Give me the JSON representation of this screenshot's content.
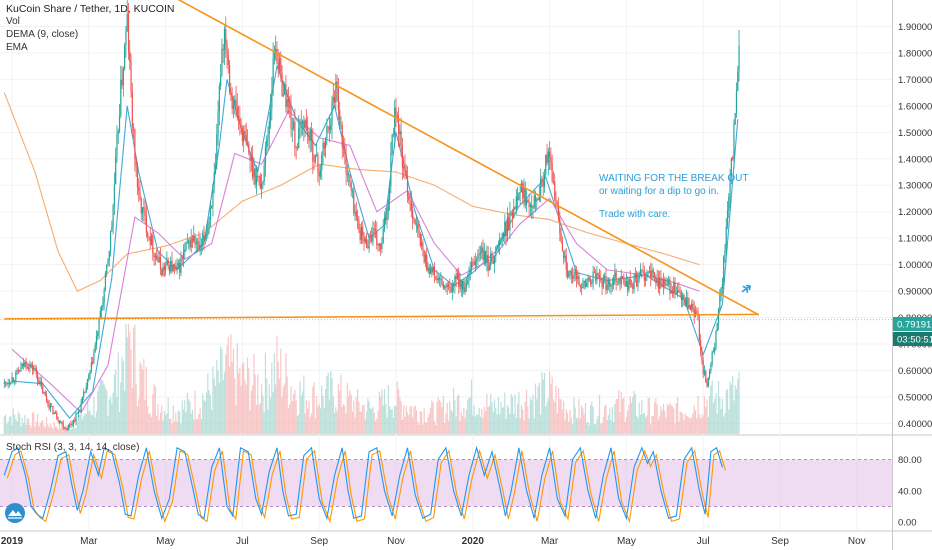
{
  "header": {
    "title": "KuCoin Share / Tether, 1D, KUCOIN",
    "vol_label": "Vol",
    "dema_label": "DEMA (9, close)",
    "ema_label": "EMA"
  },
  "rsi_title": "Stoch RSI (3, 3, 14, 14, close)",
  "annotation": {
    "line1": "WAITING FOR THE BREAK OUT",
    "line2": "or waiting for a dip to go in.",
    "line3": "Trade with care."
  },
  "price_badge": "0.79191",
  "timer_badge": "03:50:51",
  "colors": {
    "candle_up": "#26a69a",
    "candle_down": "#ef5350",
    "trendline": "#f7931a",
    "dema": "#2b9fd8",
    "ema_slow": "#f4a460",
    "ema_fast": "#d473d4",
    "rsi_k": "#2196f3",
    "rsi_d": "#ff9800",
    "rsi_band": "#e1bee7",
    "badge_price": "#26a69a",
    "badge_timer": "#1b7a6f"
  },
  "icons": {
    "logo": "tradingview-logo-icon",
    "arrow": "airplane-arrow-icon"
  },
  "chart_data": {
    "type": "candlestick",
    "title": "KuCoin Share / Tether, 1D, KUCOIN",
    "x_ticks": [
      "2019",
      "Mar",
      "May",
      "Jul",
      "Sep",
      "Nov",
      "2020",
      "Mar",
      "May",
      "Jul",
      "Sep",
      "Nov"
    ],
    "x_tick_months": [
      0,
      2,
      4,
      6,
      8,
      10,
      12,
      14,
      16,
      18,
      20,
      22
    ],
    "y_ticks": [
      "0.40000",
      "0.50000",
      "0.60000",
      "0.70000",
      "0.80000",
      "0.90000",
      "1.00000",
      "1.10000",
      "1.20000",
      "1.30000",
      "1.40000",
      "1.50000",
      "1.60000",
      "1.70000",
      "1.80000",
      "1.90000"
    ],
    "y_tick_values": [
      0.4,
      0.5,
      0.6,
      0.7,
      0.8,
      0.9,
      1.0,
      1.1,
      1.2,
      1.3,
      1.4,
      1.5,
      1.6,
      1.7,
      1.8,
      1.9
    ],
    "ylim": [
      0.36,
      2.0
    ],
    "price_path": [
      [
        -0.2,
        0.55
      ],
      [
        0.1,
        0.58
      ],
      [
        0.35,
        0.63
      ],
      [
        0.6,
        0.6
      ],
      [
        0.8,
        0.52
      ],
      [
        1.0,
        0.46
      ],
      [
        1.2,
        0.42
      ],
      [
        1.4,
        0.38
      ],
      [
        1.6,
        0.41
      ],
      [
        1.75,
        0.45
      ],
      [
        1.9,
        0.52
      ],
      [
        2.05,
        0.6
      ],
      [
        2.2,
        0.72
      ],
      [
        2.4,
        0.9
      ],
      [
        2.6,
        1.15
      ],
      [
        2.8,
        1.6
      ],
      [
        3.0,
        1.92
      ],
      [
        3.15,
        1.5
      ],
      [
        3.3,
        1.25
      ],
      [
        3.5,
        1.15
      ],
      [
        3.7,
        1.05
      ],
      [
        3.9,
        0.98
      ],
      [
        4.1,
        1.0
      ],
      [
        4.3,
        0.97
      ],
      [
        4.5,
        1.05
      ],
      [
        4.7,
        1.1
      ],
      [
        4.9,
        1.05
      ],
      [
        5.1,
        1.15
      ],
      [
        5.3,
        1.35
      ],
      [
        5.45,
        1.8
      ],
      [
        5.55,
        1.9
      ],
      [
        5.7,
        1.65
      ],
      [
        5.9,
        1.55
      ],
      [
        6.1,
        1.45
      ],
      [
        6.3,
        1.35
      ],
      [
        6.5,
        1.3
      ],
      [
        6.7,
        1.55
      ],
      [
        6.85,
        1.85
      ],
      [
        7.0,
        1.7
      ],
      [
        7.2,
        1.6
      ],
      [
        7.4,
        1.45
      ],
      [
        7.6,
        1.55
      ],
      [
        7.8,
        1.45
      ],
      [
        8.0,
        1.35
      ],
      [
        8.2,
        1.5
      ],
      [
        8.35,
        1.6
      ],
      [
        8.45,
        1.7
      ],
      [
        8.6,
        1.45
      ],
      [
        8.8,
        1.3
      ],
      [
        9.0,
        1.15
      ],
      [
        9.2,
        1.08
      ],
      [
        9.4,
        1.12
      ],
      [
        9.6,
        1.05
      ],
      [
        9.8,
        1.25
      ],
      [
        9.9,
        1.5
      ],
      [
        10.0,
        1.6
      ],
      [
        10.2,
        1.35
      ],
      [
        10.4,
        1.22
      ],
      [
        10.6,
        1.1
      ],
      [
        10.8,
        1.0
      ],
      [
        11.0,
        0.96
      ],
      [
        11.2,
        0.92
      ],
      [
        11.4,
        0.9
      ],
      [
        11.6,
        0.95
      ],
      [
        11.8,
        0.9
      ],
      [
        12.0,
        1.0
      ],
      [
        12.2,
        1.05
      ],
      [
        12.4,
        1.0
      ],
      [
        12.6,
        1.05
      ],
      [
        12.8,
        1.12
      ],
      [
        13.0,
        1.18
      ],
      [
        13.2,
        1.3
      ],
      [
        13.4,
        1.25
      ],
      [
        13.6,
        1.25
      ],
      [
        13.8,
        1.3
      ],
      [
        13.95,
        1.42
      ],
      [
        14.1,
        1.3
      ],
      [
        14.3,
        1.1
      ],
      [
        14.5,
        0.95
      ],
      [
        14.7,
        0.95
      ],
      [
        14.9,
        0.92
      ],
      [
        15.1,
        0.95
      ],
      [
        15.3,
        0.95
      ],
      [
        15.5,
        0.92
      ],
      [
        15.7,
        0.96
      ],
      [
        15.9,
        0.94
      ],
      [
        16.1,
        0.92
      ],
      [
        16.3,
        0.95
      ],
      [
        16.5,
        0.97
      ],
      [
        16.7,
        0.95
      ],
      [
        16.9,
        0.93
      ],
      [
        17.1,
        0.92
      ],
      [
        17.3,
        0.9
      ],
      [
        17.5,
        0.86
      ],
      [
        17.7,
        0.83
      ],
      [
        17.85,
        0.8
      ],
      [
        18.0,
        0.6
      ],
      [
        18.1,
        0.55
      ],
      [
        18.3,
        0.7
      ],
      [
        18.5,
        0.95
      ],
      [
        18.7,
        1.3
      ],
      [
        18.85,
        1.6
      ],
      [
        18.95,
        1.82
      ]
    ],
    "series": [
      {
        "name": "DEMA (9, close)",
        "color": "#2b9fd8",
        "points": [
          [
            0.0,
            0.56
          ],
          [
            0.8,
            0.55
          ],
          [
            1.5,
            0.42
          ],
          [
            2.1,
            0.52
          ],
          [
            2.6,
            0.95
          ],
          [
            3.0,
            1.6
          ],
          [
            3.3,
            1.35
          ],
          [
            3.8,
            1.05
          ],
          [
            4.3,
            0.98
          ],
          [
            5.0,
            1.08
          ],
          [
            5.4,
            1.45
          ],
          [
            5.6,
            1.7
          ],
          [
            6.0,
            1.5
          ],
          [
            6.4,
            1.35
          ],
          [
            6.9,
            1.75
          ],
          [
            7.4,
            1.55
          ],
          [
            7.9,
            1.45
          ],
          [
            8.4,
            1.6
          ],
          [
            8.8,
            1.35
          ],
          [
            9.3,
            1.1
          ],
          [
            9.7,
            1.15
          ],
          [
            10.0,
            1.5
          ],
          [
            10.5,
            1.2
          ],
          [
            11.0,
            0.98
          ],
          [
            11.5,
            0.92
          ],
          [
            12.0,
            0.97
          ],
          [
            12.6,
            1.05
          ],
          [
            13.2,
            1.22
          ],
          [
            13.9,
            1.33
          ],
          [
            14.3,
            1.15
          ],
          [
            14.7,
            0.97
          ],
          [
            15.5,
            0.94
          ],
          [
            16.5,
            0.96
          ],
          [
            17.5,
            0.87
          ],
          [
            18.0,
            0.66
          ],
          [
            18.5,
            0.85
          ],
          [
            18.9,
            1.55
          ]
        ]
      },
      {
        "name": "EMA",
        "color": "#f4a460",
        "points": [
          [
            -0.2,
            1.65
          ],
          [
            0.6,
            1.35
          ],
          [
            1.2,
            1.05
          ],
          [
            1.7,
            0.9
          ],
          [
            2.3,
            0.94
          ],
          [
            3.0,
            1.04
          ],
          [
            4.0,
            1.07
          ],
          [
            5.0,
            1.12
          ],
          [
            6.0,
            1.24
          ],
          [
            7.0,
            1.3
          ],
          [
            8.0,
            1.38
          ],
          [
            9.0,
            1.36
          ],
          [
            10.0,
            1.35
          ],
          [
            11.0,
            1.3
          ],
          [
            12.0,
            1.22
          ],
          [
            13.0,
            1.19
          ],
          [
            14.0,
            1.17
          ],
          [
            15.0,
            1.12
          ],
          [
            16.0,
            1.08
          ],
          [
            17.0,
            1.04
          ],
          [
            17.9,
            1.0
          ]
        ]
      },
      {
        "name": "EMA fast",
        "color": "#d473d4",
        "points": [
          [
            0.0,
            0.68
          ],
          [
            1.0,
            0.55
          ],
          [
            1.8,
            0.44
          ],
          [
            2.5,
            0.62
          ],
          [
            3.2,
            1.18
          ],
          [
            3.8,
            1.12
          ],
          [
            4.5,
            1.02
          ],
          [
            5.2,
            1.08
          ],
          [
            5.8,
            1.42
          ],
          [
            6.5,
            1.38
          ],
          [
            7.2,
            1.58
          ],
          [
            8.0,
            1.48
          ],
          [
            8.8,
            1.45
          ],
          [
            9.5,
            1.2
          ],
          [
            10.3,
            1.28
          ],
          [
            11.0,
            1.08
          ],
          [
            11.7,
            0.96
          ],
          [
            12.5,
            1.02
          ],
          [
            13.2,
            1.15
          ],
          [
            14.0,
            1.25
          ],
          [
            14.7,
            1.08
          ],
          [
            15.5,
            0.98
          ],
          [
            16.5,
            0.96
          ],
          [
            17.3,
            0.93
          ],
          [
            17.9,
            0.9
          ]
        ]
      }
    ],
    "trendlines": [
      {
        "name": "descending",
        "from": [
          4.1,
          2.02
        ],
        "to": [
          19.45,
          0.81
        ]
      },
      {
        "name": "support",
        "from": [
          -0.2,
          0.795
        ],
        "to": [
          19.45,
          0.812
        ]
      }
    ],
    "stoch_rsi": {
      "levels": [
        80,
        20
      ],
      "y_ticks": [
        "80.00",
        "40.00",
        "0.00"
      ],
      "y_tick_values": [
        80,
        40,
        0
      ],
      "ylim": [
        -10,
        110
      ],
      "k_path": [
        [
          -0.2,
          60
        ],
        [
          0.0,
          90
        ],
        [
          0.15,
          95
        ],
        [
          0.35,
          60
        ],
        [
          0.5,
          20
        ],
        [
          0.65,
          10
        ],
        [
          0.8,
          5
        ],
        [
          1.0,
          40
        ],
        [
          1.2,
          85
        ],
        [
          1.4,
          90
        ],
        [
          1.55,
          50
        ],
        [
          1.7,
          15
        ],
        [
          1.85,
          40
        ],
        [
          2.05,
          90
        ],
        [
          2.25,
          60
        ],
        [
          2.4,
          95
        ],
        [
          2.6,
          90
        ],
        [
          2.8,
          50
        ],
        [
          2.95,
          10
        ],
        [
          3.1,
          8
        ],
        [
          3.3,
          60
        ],
        [
          3.5,
          95
        ],
        [
          3.7,
          40
        ],
        [
          3.9,
          5
        ],
        [
          4.1,
          30
        ],
        [
          4.3,
          95
        ],
        [
          4.5,
          90
        ],
        [
          4.7,
          45
        ],
        [
          4.85,
          10
        ],
        [
          5.0,
          5
        ],
        [
          5.2,
          70
        ],
        [
          5.4,
          95
        ],
        [
          5.6,
          20
        ],
        [
          5.75,
          8
        ],
        [
          5.95,
          95
        ],
        [
          6.15,
          90
        ],
        [
          6.35,
          30
        ],
        [
          6.5,
          10
        ],
        [
          6.7,
          65
        ],
        [
          6.9,
          95
        ],
        [
          7.05,
          40
        ],
        [
          7.2,
          8
        ],
        [
          7.4,
          10
        ],
        [
          7.6,
          85
        ],
        [
          7.8,
          95
        ],
        [
          8.0,
          30
        ],
        [
          8.2,
          5
        ],
        [
          8.4,
          60
        ],
        [
          8.6,
          95
        ],
        [
          8.75,
          40
        ],
        [
          8.9,
          5
        ],
        [
          9.1,
          8
        ],
        [
          9.3,
          90
        ],
        [
          9.5,
          95
        ],
        [
          9.7,
          40
        ],
        [
          9.9,
          8
        ],
        [
          10.1,
          60
        ],
        [
          10.3,
          95
        ],
        [
          10.5,
          35
        ],
        [
          10.7,
          5
        ],
        [
          10.9,
          10
        ],
        [
          11.1,
          80
        ],
        [
          11.3,
          95
        ],
        [
          11.5,
          40
        ],
        [
          11.7,
          8
        ],
        [
          11.9,
          60
        ],
        [
          12.1,
          95
        ],
        [
          12.3,
          60
        ],
        [
          12.5,
          90
        ],
        [
          12.7,
          45
        ],
        [
          12.85,
          8
        ],
        [
          13.0,
          40
        ],
        [
          13.2,
          95
        ],
        [
          13.4,
          40
        ],
        [
          13.6,
          5
        ],
        [
          13.8,
          60
        ],
        [
          14.0,
          95
        ],
        [
          14.2,
          30
        ],
        [
          14.4,
          8
        ],
        [
          14.6,
          80
        ],
        [
          14.8,
          95
        ],
        [
          15.0,
          40
        ],
        [
          15.2,
          5
        ],
        [
          15.4,
          60
        ],
        [
          15.6,
          95
        ],
        [
          15.8,
          30
        ],
        [
          16.0,
          5
        ],
        [
          16.2,
          70
        ],
        [
          16.4,
          95
        ],
        [
          16.55,
          75
        ],
        [
          16.7,
          90
        ],
        [
          16.9,
          40
        ],
        [
          17.1,
          5
        ],
        [
          17.3,
          8
        ],
        [
          17.5,
          80
        ],
        [
          17.7,
          95
        ],
        [
          17.9,
          40
        ],
        [
          18.05,
          10
        ],
        [
          18.2,
          90
        ],
        [
          18.35,
          95
        ],
        [
          18.5,
          70
        ]
      ]
    },
    "volume_profile": [
      [
        0.0,
        0.15
      ],
      [
        0.5,
        0.12
      ],
      [
        1.0,
        0.08
      ],
      [
        1.5,
        0.06
      ],
      [
        2.0,
        0.2
      ],
      [
        2.5,
        0.35
      ],
      [
        2.8,
        0.45
      ],
      [
        3.0,
        0.85
      ],
      [
        3.3,
        0.5
      ],
      [
        3.8,
        0.25
      ],
      [
        4.3,
        0.2
      ],
      [
        4.8,
        0.25
      ],
      [
        5.3,
        0.4
      ],
      [
        5.6,
        0.55
      ],
      [
        6.0,
        0.45
      ],
      [
        6.5,
        0.4
      ],
      [
        6.9,
        0.55
      ],
      [
        7.4,
        0.35
      ],
      [
        7.9,
        0.3
      ],
      [
        8.4,
        0.35
      ],
      [
        8.9,
        0.25
      ],
      [
        9.4,
        0.2
      ],
      [
        9.9,
        0.3
      ],
      [
        10.5,
        0.2
      ],
      [
        11.0,
        0.18
      ],
      [
        11.5,
        0.25
      ],
      [
        12.0,
        0.3
      ],
      [
        12.5,
        0.22
      ],
      [
        13.0,
        0.25
      ],
      [
        13.5,
        0.3
      ],
      [
        14.0,
        0.35
      ],
      [
        14.5,
        0.2
      ],
      [
        15.0,
        0.18
      ],
      [
        15.5,
        0.22
      ],
      [
        16.0,
        0.25
      ],
      [
        16.5,
        0.2
      ],
      [
        17.0,
        0.18
      ],
      [
        17.5,
        0.2
      ],
      [
        18.0,
        0.28
      ],
      [
        18.5,
        0.3
      ],
      [
        18.9,
        0.35
      ]
    ]
  }
}
